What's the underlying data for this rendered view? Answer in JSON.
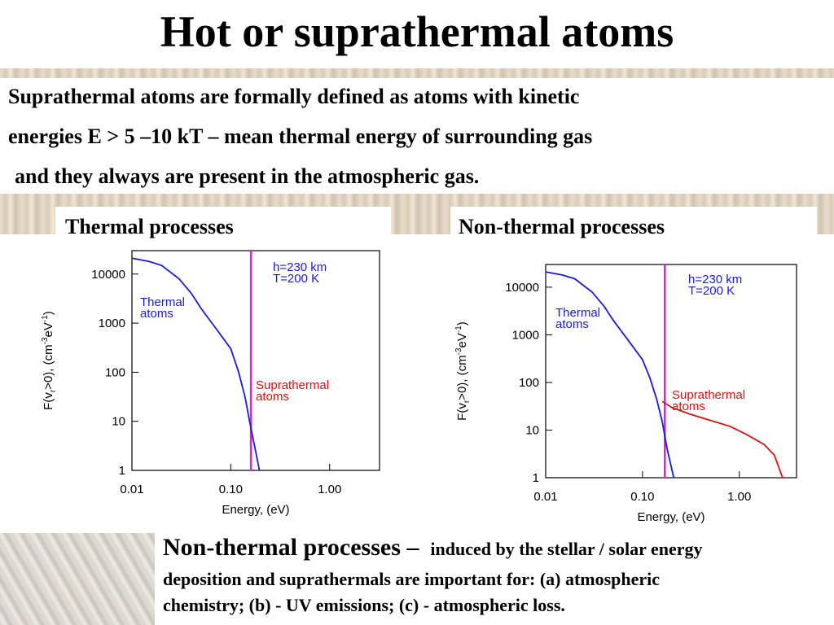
{
  "title": "Hot or suprathermal atoms",
  "intro": [
    "Suprathermal atoms are formally defined as atoms with kinetic",
    "energies E > 5 –10 kT – mean thermal energy of surrounding gas",
    "and they always are present in the atmospheric gas."
  ],
  "panels": [
    "Thermal processes",
    "Non-thermal processes"
  ],
  "footer": {
    "lead": "Non-thermal processes –",
    "lead_rest": "induced by the stellar / solar  energy",
    "lines": [
      "deposition and suprathermals are important for: (a) atmospheric",
      "chemistry; (b) - UV emissions; (c) - atmospheric loss."
    ]
  },
  "chart_data": [
    {
      "type": "line",
      "xlabel": "Energy, (eV)",
      "ylabel_parts": [
        "F(v",
        "r",
        ">0), (cm",
        "-3",
        "eV",
        "-1",
        ")"
      ],
      "xlog": true,
      "ylog": true,
      "xlim": [
        0.01,
        3.2
      ],
      "ylim": [
        1,
        30000
      ],
      "xticks": [
        {
          "value": 0.01,
          "label": "0.01"
        },
        {
          "value": 0.1,
          "label": "0.10"
        },
        {
          "value": 1,
          "label": "1.00"
        }
      ],
      "yticks": [
        1,
        10,
        100,
        1000,
        10000
      ],
      "threshold": {
        "value": 0.16,
        "color": "#e020e0"
      },
      "series": [
        {
          "color": "#1a1adc",
          "x": [
            0.01,
            0.015,
            0.02,
            0.03,
            0.04,
            0.05,
            0.07,
            0.1,
            0.12,
            0.14,
            0.155,
            0.175,
            0.195
          ],
          "values": [
            21000,
            18000,
            15000,
            8000,
            4000,
            2000,
            800,
            300,
            100,
            30,
            10,
            3,
            1
          ]
        }
      ],
      "annotations": [
        {
          "lines": [
            "h=230 km",
            "T=200 K"
          ],
          "color": "#1a1adc"
        },
        {
          "lines": [
            "Thermal",
            "atoms"
          ],
          "color": "#1a1adc"
        },
        {
          "lines": [
            "Suprathermal",
            "atoms"
          ],
          "color": "#e01010"
        }
      ]
    },
    {
      "type": "line",
      "xlabel": "Energy, (eV)",
      "ylabel_parts": [
        "F(v",
        "r",
        ">0), (cm",
        "-3",
        "eV",
        "-1",
        ")"
      ],
      "xlog": true,
      "ylog": true,
      "xlim": [
        0.01,
        3.9
      ],
      "ylim": [
        1,
        30000
      ],
      "xticks": [
        {
          "value": 0.01,
          "label": "0.01"
        },
        {
          "value": 0.1,
          "label": "0.10"
        },
        {
          "value": 1,
          "label": "1.00"
        }
      ],
      "yticks": [
        1,
        10,
        100,
        1000,
        10000
      ],
      "threshold": {
        "value": 0.17,
        "color": "#e020e0"
      },
      "series": [
        {
          "color": "#1a1adc",
          "x": [
            0.01,
            0.015,
            0.02,
            0.03,
            0.04,
            0.05,
            0.07,
            0.1,
            0.12,
            0.14,
            0.16,
            0.18,
            0.21
          ],
          "values": [
            21000,
            18000,
            15000,
            8000,
            4000,
            2000,
            800,
            300,
            120,
            45,
            15,
            4,
            1
          ]
        },
        {
          "color": "#e01010",
          "x": [
            0.16,
            0.2,
            0.3,
            0.5,
            0.8,
            1.2,
            1.8,
            2.3,
            2.6,
            2.8
          ],
          "values": [
            40,
            30,
            22,
            16,
            12,
            8,
            5,
            3,
            1.5,
            1
          ]
        }
      ],
      "annotations": [
        {
          "lines": [
            "h=230 km",
            "T=200 K"
          ],
          "color": "#1a1adc"
        },
        {
          "lines": [
            "Thermal",
            "atoms"
          ],
          "color": "#1a1adc"
        },
        {
          "lines": [
            "Suprathermal",
            "atoms"
          ],
          "color": "#e01010"
        }
      ]
    }
  ]
}
